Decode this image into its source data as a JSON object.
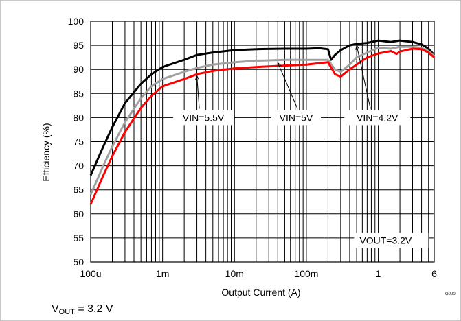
{
  "chart_data": {
    "type": "line",
    "xlabel": "Output Current (A)",
    "ylabel": "Efficiency (%)",
    "x_scale": "log",
    "xlim": [
      0.0001,
      6
    ],
    "ylim": [
      50,
      100
    ],
    "x_ticks": [
      {
        "value": 0.0001,
        "label": "100u"
      },
      {
        "value": 0.001,
        "label": "1m"
      },
      {
        "value": 0.01,
        "label": "10m"
      },
      {
        "value": 0.1,
        "label": "100m"
      },
      {
        "value": 1,
        "label": "1"
      },
      {
        "value": 6,
        "label": "6"
      }
    ],
    "y_ticks": [
      50,
      55,
      60,
      65,
      70,
      75,
      80,
      85,
      90,
      95,
      100
    ],
    "grid": true,
    "series": [
      {
        "name": "VIN=4.2V",
        "color": "#000000",
        "points": [
          [
            0.0001,
            68
          ],
          [
            0.00015,
            74
          ],
          [
            0.0002,
            78
          ],
          [
            0.0003,
            83
          ],
          [
            0.0005,
            87
          ],
          [
            0.0007,
            89
          ],
          [
            0.001,
            90.5
          ],
          [
            0.002,
            92
          ],
          [
            0.003,
            93
          ],
          [
            0.005,
            93.5
          ],
          [
            0.01,
            94
          ],
          [
            0.02,
            94.2
          ],
          [
            0.05,
            94.3
          ],
          [
            0.1,
            94.3
          ],
          [
            0.15,
            94.4
          ],
          [
            0.2,
            94.2
          ],
          [
            0.22,
            92
          ],
          [
            0.25,
            93
          ],
          [
            0.3,
            94
          ],
          [
            0.4,
            95
          ],
          [
            0.5,
            95.3
          ],
          [
            0.7,
            95.5
          ],
          [
            1,
            96
          ],
          [
            1.5,
            95.7
          ],
          [
            2,
            96
          ],
          [
            3,
            95.7
          ],
          [
            4,
            95.2
          ],
          [
            5,
            94.3
          ],
          [
            6,
            93
          ]
        ]
      },
      {
        "name": "VIN=5V",
        "color": "#a0a0a0",
        "points": [
          [
            0.0001,
            64
          ],
          [
            0.00015,
            70
          ],
          [
            0.0002,
            74
          ],
          [
            0.0003,
            79
          ],
          [
            0.0005,
            84
          ],
          [
            0.0007,
            86.5
          ],
          [
            0.001,
            88
          ],
          [
            0.002,
            89.5
          ],
          [
            0.003,
            90.3
          ],
          [
            0.005,
            91
          ],
          [
            0.01,
            91.5
          ],
          [
            0.02,
            91.8
          ],
          [
            0.05,
            92
          ],
          [
            0.1,
            92
          ],
          [
            0.2,
            92
          ],
          [
            0.25,
            90
          ],
          [
            0.3,
            89.5
          ],
          [
            0.4,
            91
          ],
          [
            0.5,
            92.5
          ],
          [
            0.7,
            93.5
          ],
          [
            1,
            94.5
          ],
          [
            1.5,
            94.3
          ],
          [
            2,
            94.7
          ],
          [
            3,
            94.7
          ],
          [
            4,
            94.5
          ],
          [
            5,
            93.8
          ],
          [
            6,
            92.8
          ]
        ]
      },
      {
        "name": "VIN=5.5V",
        "color": "#ff0000",
        "points": [
          [
            0.0001,
            62
          ],
          [
            0.00015,
            68
          ],
          [
            0.0002,
            72
          ],
          [
            0.0003,
            77
          ],
          [
            0.0005,
            82
          ],
          [
            0.0007,
            84.5
          ],
          [
            0.001,
            86.5
          ],
          [
            0.002,
            88
          ],
          [
            0.003,
            89
          ],
          [
            0.005,
            89.7
          ],
          [
            0.01,
            90.2
          ],
          [
            0.02,
            90.5
          ],
          [
            0.05,
            90.8
          ],
          [
            0.1,
            91
          ],
          [
            0.2,
            91.5
          ],
          [
            0.25,
            89
          ],
          [
            0.3,
            88.5
          ],
          [
            0.4,
            90
          ],
          [
            0.5,
            91
          ],
          [
            0.7,
            92.5
          ],
          [
            1,
            93.3
          ],
          [
            1.5,
            93.8
          ],
          [
            1.8,
            93.2
          ],
          [
            2,
            93.7
          ],
          [
            3,
            94.3
          ],
          [
            4,
            94.2
          ],
          [
            5,
            93.5
          ],
          [
            6,
            92.5
          ]
        ]
      }
    ],
    "annotations": [
      {
        "text": "VIN=5.5V",
        "at_x": 0.003,
        "at_y": 89
      },
      {
        "text": "VIN=5V",
        "at_x": 0.04,
        "at_y": 91.7
      },
      {
        "text": "VIN=4.2V",
        "at_x": 0.5,
        "at_y": 95.3
      },
      {
        "text": "VOUT=3.2V"
      }
    ],
    "figure_id": "G000"
  },
  "caption": {
    "main": "V",
    "sub": "OUT",
    "rest": " = 3.2 V"
  }
}
